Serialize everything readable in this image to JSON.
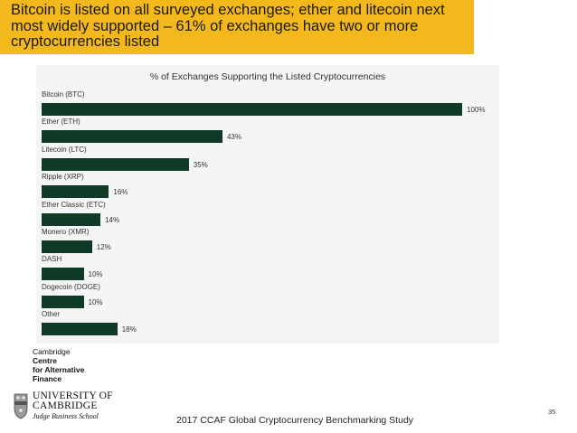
{
  "banner": {
    "text": "Bitcoin is listed on all surveyed exchanges; ether and litecoin next most widely supported – 61% of exchanges have two or more cryptocurrencies listed"
  },
  "chart_data": {
    "type": "bar",
    "orientation": "horizontal",
    "title": "% of Exchanges Supporting the Listed Cryptocurrencies",
    "categories": [
      "Bitcoin (BTC)",
      "Ether (ETH)",
      "Litecoin (LTC)",
      "Ripple (XRP)",
      "Ether Classic (ETC)",
      "Monero (XMR)",
      "DASH",
      "Dogecoin (DOGE)",
      "Other"
    ],
    "values": [
      100,
      43,
      35,
      16,
      14,
      12,
      10,
      10,
      18
    ],
    "value_labels": [
      "100%",
      "43%",
      "35%",
      "16%",
      "14%",
      "12%",
      "10%",
      "10%",
      "18%"
    ],
    "xlim": [
      0,
      100
    ],
    "bar_color": "#0e3a26",
    "grid": false
  },
  "logo": {
    "ccaf_lines": [
      "Cambridge",
      "Centre",
      "for Alternative",
      "Finance"
    ],
    "university_line1": "UNIVERSITY OF",
    "university_line2": "CAMBRIDGE",
    "university_line3": "Judge Business School"
  },
  "footer": {
    "study": "2017 CCAF Global Cryptocurrency Benchmarking Study",
    "page_number": "35"
  }
}
